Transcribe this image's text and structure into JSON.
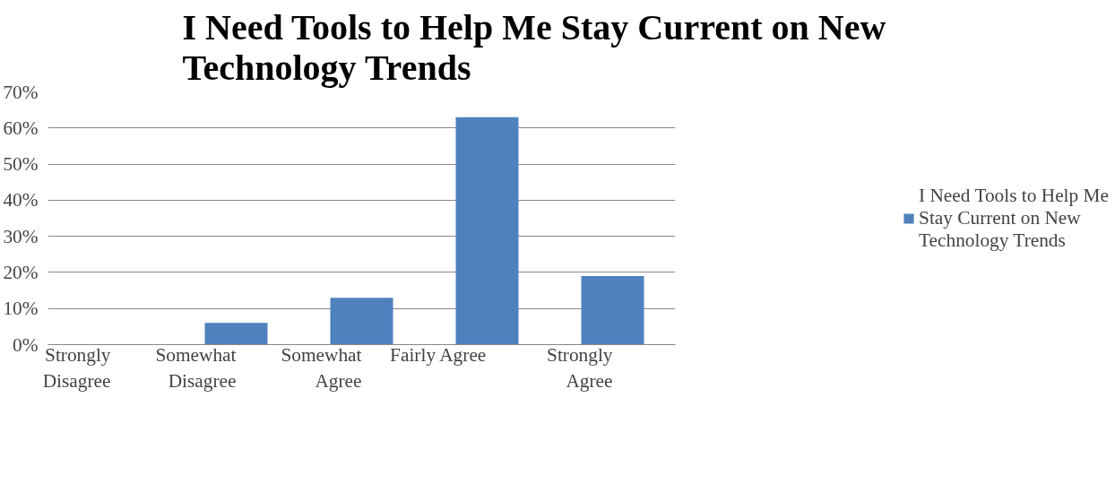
{
  "chart_data": {
    "type": "bar",
    "title": "I Need Tools to Help Me Stay Current on New Technology Trends",
    "categories": [
      "Strongly Disagree",
      "Somewhat Disagree",
      "Somewhat Agree",
      "Fairly Agree",
      "Strongly Agree"
    ],
    "series": [
      {
        "name": "I Need Tools to Help Me Stay Current on New Technology Trends",
        "color": "#4f81bd",
        "values": [
          0,
          6,
          13,
          63,
          19
        ]
      }
    ],
    "ylim": [
      0,
      70
    ],
    "yticks": [
      {
        "value": 0,
        "label": "0%"
      },
      {
        "value": 10,
        "label": "10%"
      },
      {
        "value": 20,
        "label": "20%"
      },
      {
        "value": 30,
        "label": "30%"
      },
      {
        "value": 40,
        "label": "40%"
      },
      {
        "value": 50,
        "label": "50%"
      },
      {
        "value": 60,
        "label": "60%"
      },
      {
        "value": 70,
        "label": "70%"
      }
    ],
    "grid": "y",
    "legend": "right"
  }
}
